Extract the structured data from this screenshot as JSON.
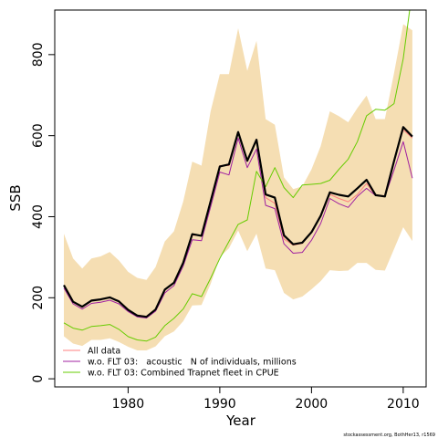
{
  "chart_data": {
    "type": "line",
    "xlabel": "Year",
    "ylabel": "SSB",
    "xlim": [
      1972,
      2012.5
    ],
    "ylim": [
      -20,
      910
    ],
    "xticks": [
      1980,
      1990,
      2000,
      2010
    ],
    "yticks": [
      0,
      200,
      400,
      600,
      800
    ],
    "x": [
      1973,
      1974,
      1975,
      1976,
      1977,
      1978,
      1979,
      1980,
      1981,
      1982,
      1983,
      1984,
      1985,
      1986,
      1987,
      1988,
      1989,
      1990,
      1991,
      1992,
      1993,
      1994,
      1995,
      1996,
      1997,
      1998,
      1999,
      2000,
      2001,
      2002,
      2003,
      2004,
      2005,
      2006,
      2007,
      2008,
      2009,
      2010,
      2011
    ],
    "band": {
      "upper": [
        358,
        297,
        272,
        297,
        302,
        313,
        292,
        264,
        249,
        244,
        276,
        339,
        364,
        437,
        536,
        526,
        660,
        752,
        752,
        865,
        760,
        834,
        641,
        627,
        497,
        468,
        475,
        517,
        574,
        660,
        648,
        633,
        668,
        699,
        641,
        641,
        754,
        875,
        860
      ],
      "lower": [
        105,
        87,
        81,
        96,
        96,
        100,
        91,
        79,
        70,
        70,
        80,
        105,
        117,
        142,
        181,
        182,
        234,
        300,
        322,
        366,
        315,
        358,
        272,
        268,
        212,
        196,
        203,
        221,
        241,
        268,
        266,
        267,
        286,
        286,
        269,
        267,
        320,
        374,
        340
      ]
    },
    "series": [
      {
        "name": "All data",
        "color": "#ff7f7f",
        "values": [
          230,
          189,
          178,
          192,
          195,
          200,
          191,
          170,
          157,
          154,
          171,
          218,
          237,
          284,
          354,
          354,
          435,
          526,
          526,
          608,
          540,
          589,
          447,
          433,
          345,
          330,
          334,
          362,
          400,
          455,
          445,
          437,
          455,
          482,
          452,
          452,
          540,
          614,
          594
        ]
      },
      {
        "name": "w.o. FLT 03:   acoustic   N of individuals, millions",
        "color": "#a020a0",
        "values": [
          224,
          185,
          172,
          186,
          189,
          194,
          185,
          166,
          153,
          150,
          167,
          212,
          230,
          278,
          343,
          341,
          424,
          510,
          503,
          594,
          521,
          567,
          428,
          420,
          333,
          310,
          312,
          342,
          383,
          445,
          432,
          423,
          450,
          470,
          452,
          450,
          515,
          585,
          495
        ]
      },
      {
        "name": "w.o. FLT 03: Combined Trapnet fleet in CPUE",
        "color": "#66cc00",
        "values": [
          138,
          125,
          120,
          129,
          131,
          134,
          122,
          104,
          96,
          93,
          103,
          131,
          149,
          172,
          210,
          203,
          248,
          297,
          339,
          381,
          392,
          512,
          474,
          521,
          472,
          447,
          478,
          480,
          482,
          490,
          517,
          542,
          585,
          649,
          665,
          663,
          679,
          790,
          960
        ]
      },
      {
        "name": "",
        "color": "#000000",
        "values": [
          231,
          190,
          178,
          193,
          196,
          201,
          191,
          170,
          156,
          153,
          171,
          220,
          237,
          286,
          357,
          353,
          438,
          524,
          529,
          609,
          538,
          590,
          455,
          447,
          354,
          332,
          336,
          362,
          402,
          460,
          454,
          450,
          470,
          491,
          453,
          450,
          537,
          621,
          598
        ]
      }
    ],
    "legend_position": "bottom-left"
  },
  "footer_note": "stockassessment.org, BothHer13, r1569"
}
